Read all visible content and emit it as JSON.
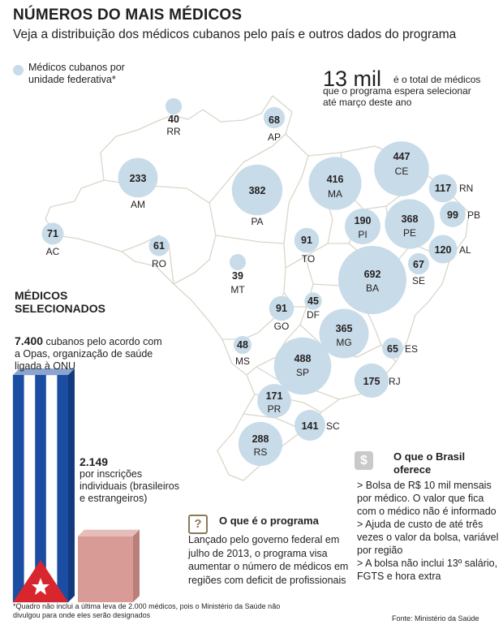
{
  "header": {
    "title": "NÚMEROS DO MAIS MÉDICOS",
    "subtitle": "Veja a distribuição dos médicos cubanos pelo país e outros dados do programa"
  },
  "legend": {
    "label": "Médicos cubanos por unidade federativa*",
    "color": "#c8dbe8"
  },
  "highlight": {
    "number": "13 mil",
    "text_line1": "é o total de médicos",
    "text_rest": "que o programa espera selecionar até março deste ano"
  },
  "states": [
    {
      "uf": "RR",
      "value": 40
    },
    {
      "uf": "AP",
      "value": 68
    },
    {
      "uf": "AM",
      "value": 233
    },
    {
      "uf": "PA",
      "value": 382
    },
    {
      "uf": "MA",
      "value": 416
    },
    {
      "uf": "CE",
      "value": 447
    },
    {
      "uf": "RN",
      "value": 117
    },
    {
      "uf": "PB",
      "value": 99
    },
    {
      "uf": "PE",
      "value": 368
    },
    {
      "uf": "PI",
      "value": 190
    },
    {
      "uf": "AL",
      "value": 120
    },
    {
      "uf": "SE",
      "value": 67
    },
    {
      "uf": "BA",
      "value": 692
    },
    {
      "uf": "TO",
      "value": 91
    },
    {
      "uf": "AC",
      "value": 71
    },
    {
      "uf": "RO",
      "value": 61
    },
    {
      "uf": "MT",
      "value": 39
    },
    {
      "uf": "DF",
      "value": 45
    },
    {
      "uf": "GO",
      "value": 91
    },
    {
      "uf": "MG",
      "value": 365
    },
    {
      "uf": "MS",
      "value": 48
    },
    {
      "uf": "ES",
      "value": 65
    },
    {
      "uf": "SP",
      "value": 488
    },
    {
      "uf": "RJ",
      "value": 175
    },
    {
      "uf": "PR",
      "value": 171
    },
    {
      "uf": "SC",
      "value": 141
    },
    {
      "uf": "RS",
      "value": 288
    }
  ],
  "selected": {
    "title": "MÉDICOS SELECIONADOS",
    "cuban_number": "7.400",
    "cuban_text": "cubanos pelo acordo com a Opas, organização de saúde ligada à ONU",
    "individual_number": "2.149",
    "individual_text": "por inscrições individuais (brasileiros e estrangeiros)",
    "cuban_value": 7400,
    "individual_value": 2149,
    "cuban_color": "#1b4ea3",
    "individual_color": "#d89b96"
  },
  "program_box": {
    "icon": "question-icon",
    "title": "O que é o programa",
    "text": "Lançado pelo governo federal em julho de 2013, o programa visa aumentar o número de médicos em regiões com deficit de profissionais"
  },
  "brazil_box": {
    "icon": "dollar-icon",
    "title": "O que o Brasil oferece",
    "items": [
      "> Bolsa de R$ 10 mil mensais por médico. O valor que fica com o médico não é informado",
      "> Ajuda de custo de até três vezes o valor da bolsa, variável por região",
      "> A bolsa não inclui 13º salário, FGTS e hora extra"
    ]
  },
  "footnote": "*Quadro não inclui a última leva de 2.000 médicos, pois o Ministério da Saúde não divulgou para onde eles serão designados",
  "source": "Fonte: Ministério da Saúde"
}
